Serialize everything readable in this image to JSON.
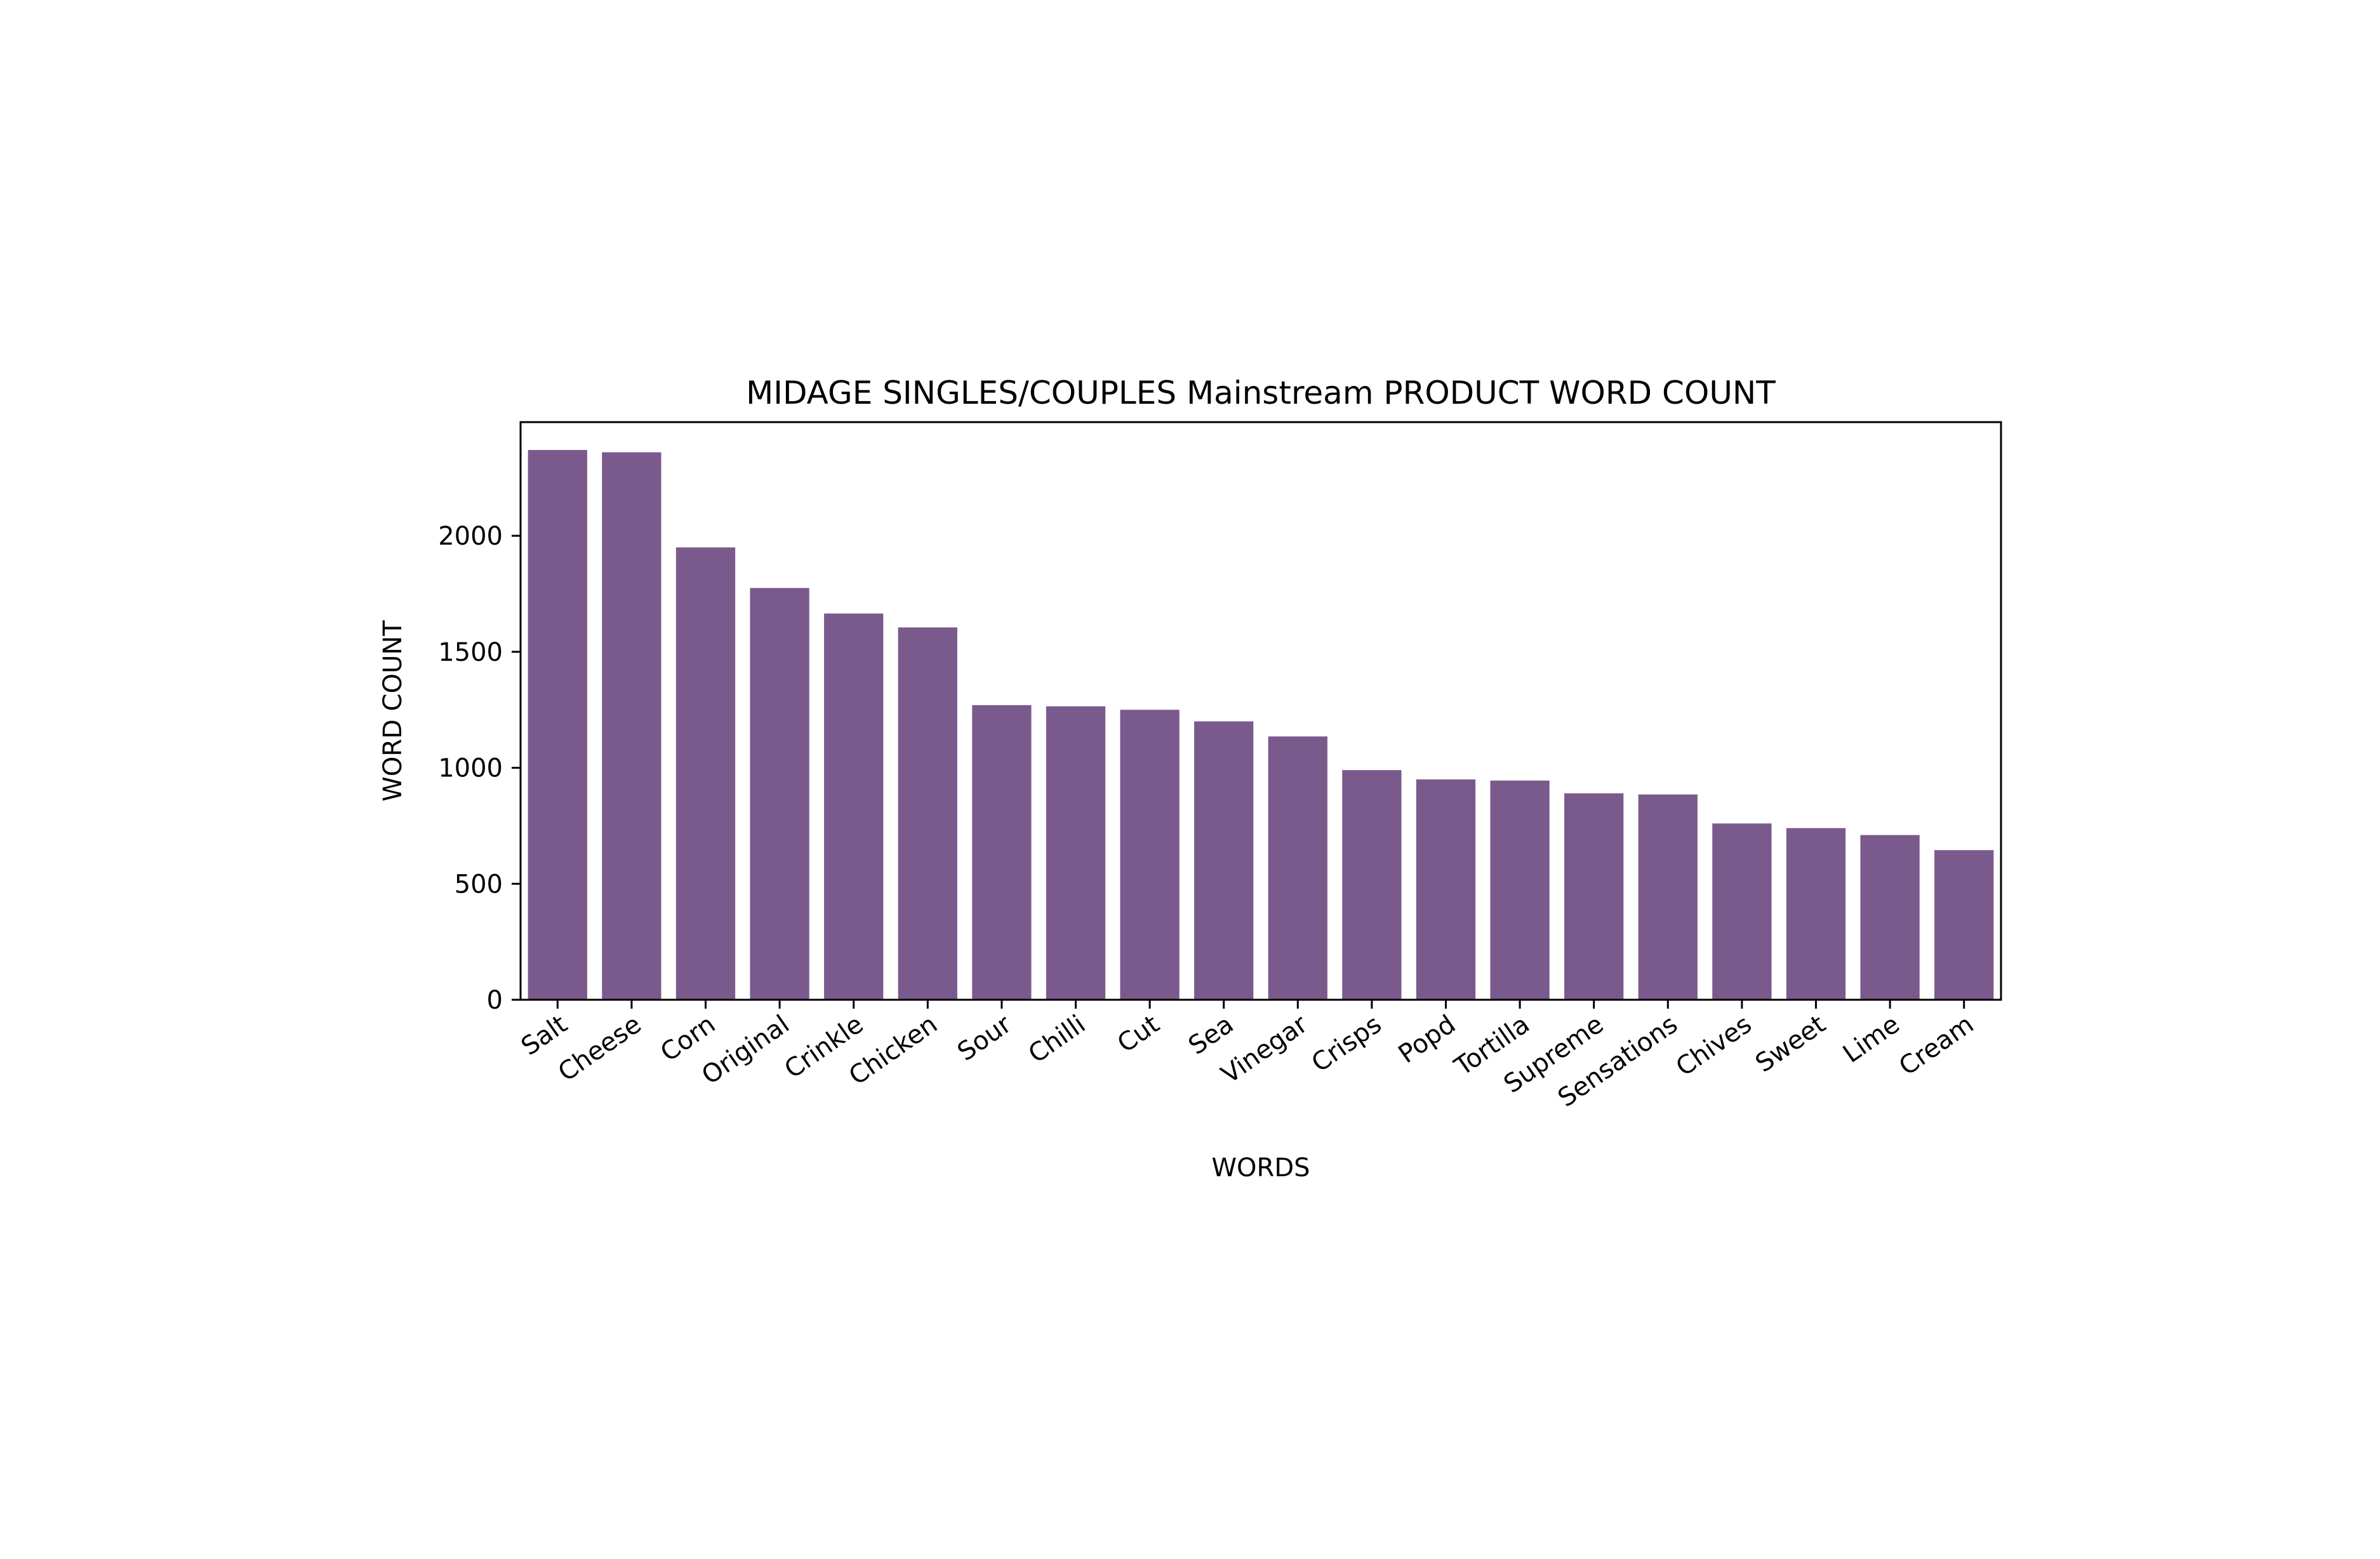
{
  "chart_data": {
    "type": "bar",
    "title": "MIDAGE SINGLES/COUPLES Mainstream PRODUCT WORD COUNT",
    "xlabel": "WORDS",
    "ylabel": "WORD COUNT",
    "categories": [
      "Salt",
      "Cheese",
      "Corn",
      "Original",
      "Crinkle",
      "Chicken",
      "Sour",
      "Chilli",
      "Cut",
      "Sea",
      "Vinegar",
      "Crisps",
      "Popd",
      "Tortilla",
      "Supreme",
      "Sensations",
      "Chives",
      "Sweet",
      "Lime",
      "Cream"
    ],
    "values": [
      2370,
      2360,
      1950,
      1775,
      1665,
      1605,
      1270,
      1265,
      1250,
      1200,
      1135,
      990,
      950,
      945,
      890,
      885,
      760,
      740,
      710,
      645
    ],
    "ylim": [
      0,
      2490
    ],
    "yticks": [
      0,
      500,
      1000,
      1500,
      2000
    ],
    "grid": false,
    "legend": "none",
    "bar_color": "#7a5a8c"
  }
}
